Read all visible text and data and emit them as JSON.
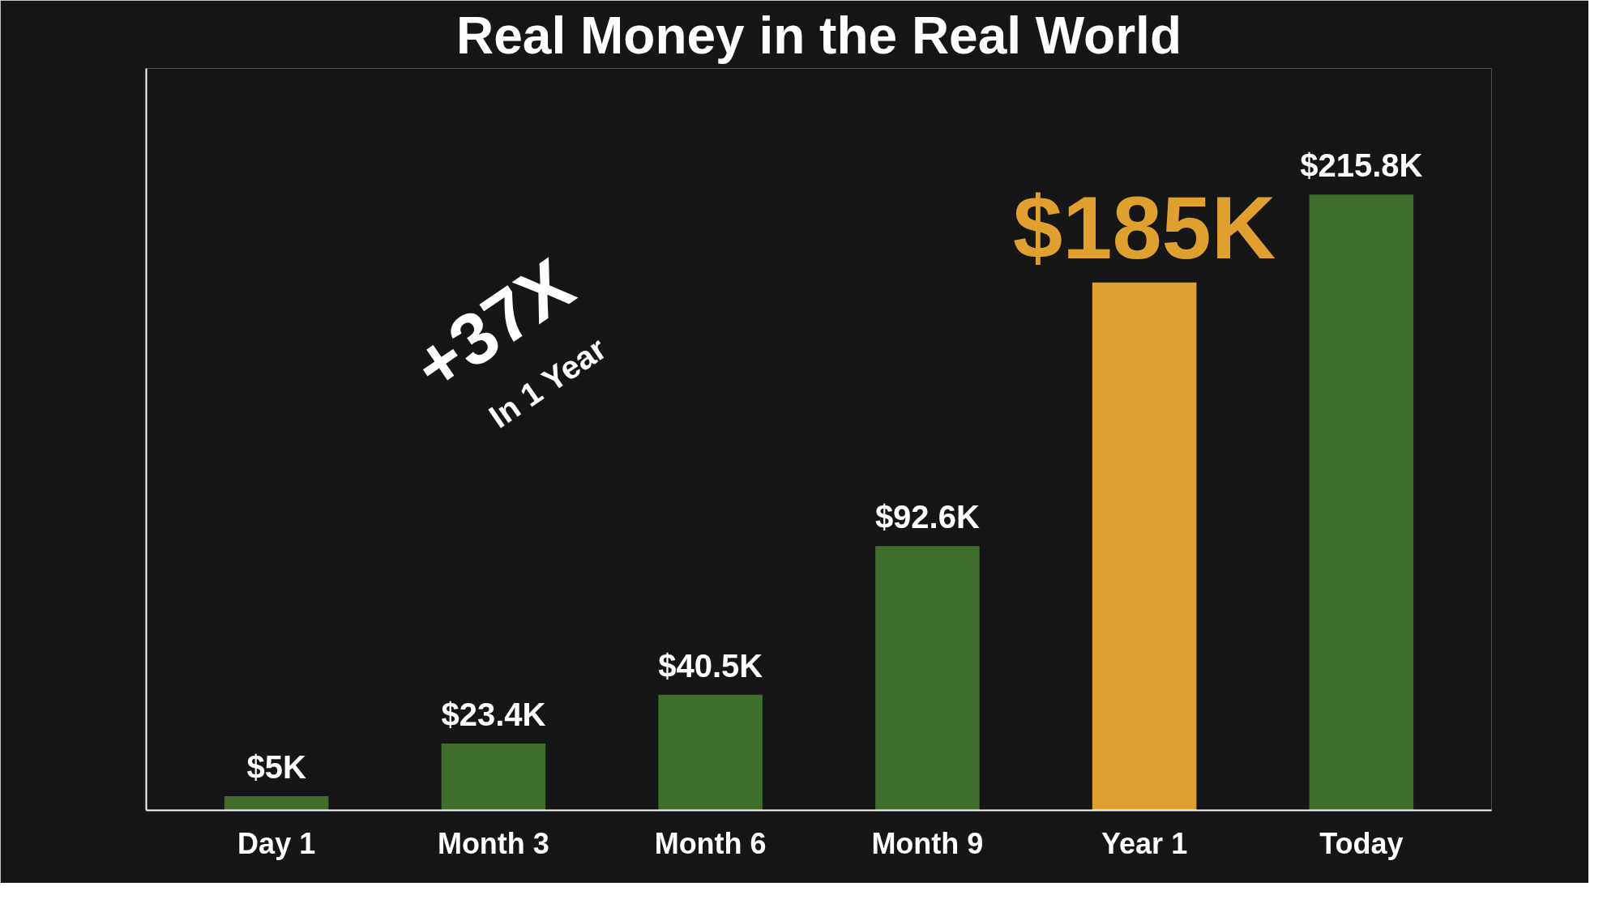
{
  "chart_data": {
    "type": "bar",
    "title": "Real Money in the Real World",
    "categories": [
      "Day 1",
      "Month 3",
      "Month 6",
      "Month 9",
      "Year 1",
      "Today"
    ],
    "values": [
      5,
      23.4,
      40.5,
      92.6,
      185,
      215.8
    ],
    "colors": [
      "#3f6e2c",
      "#3f6e2c",
      "#3f6e2c",
      "#3f6e2c",
      "#e0a030",
      "#3f6e2c"
    ],
    "value_labels": [
      "$5K",
      "$23.4K",
      "$40.5K",
      "$92.6K",
      "$185K",
      "$215.8K"
    ],
    "ylim": [
      0,
      260
    ],
    "annotations": [
      "+37X",
      "In 1 Year"
    ]
  }
}
